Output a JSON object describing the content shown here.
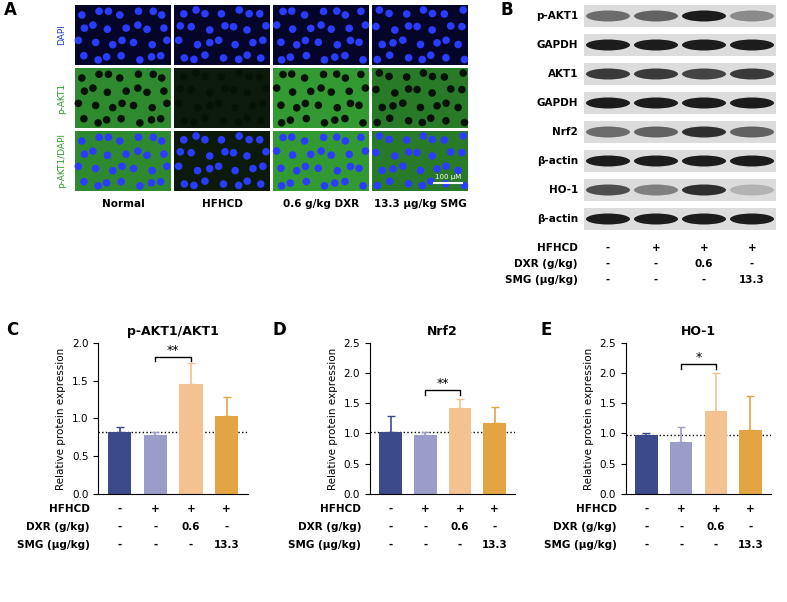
{
  "panel_letters": [
    "A",
    "B",
    "C",
    "D",
    "E"
  ],
  "panel_a": {
    "rows": [
      "DAPI",
      "p-AKT1",
      "p-AKT1/DAPI"
    ],
    "columns": [
      "Normal",
      "HFHCD",
      "0.6 g/kg DXR",
      "13.3 μg/kg SMG"
    ],
    "scale_bar": "100 μM"
  },
  "panel_b": {
    "blots": [
      "p-AKT1",
      "GAPDH",
      "AKT1",
      "GAPDH",
      "Nrf2",
      "β-actin",
      "HO-1",
      "β-actin"
    ],
    "treatments": [
      {
        "label": "HFHCD",
        "values": [
          "-",
          "+",
          "+",
          "+"
        ]
      },
      {
        "label": "DXR (g/kg)",
        "values": [
          "-",
          "-",
          "0.6",
          "-"
        ]
      },
      {
        "label": "SMG (μg/kg)",
        "values": [
          "-",
          "-",
          "-",
          "13.3"
        ]
      }
    ]
  },
  "chart_data": [
    {
      "type": "bar",
      "title": "p-AKT1/AKT1",
      "y_label": "Relative protein expression",
      "categories": [
        null,
        null,
        null,
        null
      ],
      "values": [
        0.82,
        0.78,
        1.46,
        1.03
      ],
      "errors": [
        0.07,
        0.04,
        0.27,
        0.26
      ],
      "colors": [
        "#3c4a8c",
        "#9c9cc9",
        "#f3c290",
        "#e3a443"
      ],
      "ylim": [
        0,
        2.0
      ],
      "yticks": [
        {
          "value": 0,
          "label": "0.0"
        },
        0.5,
        {
          "value": 1,
          "label": "1.0"
        },
        1.5,
        {
          "value": 2,
          "label": "2.0"
        }
      ],
      "tick_labels": "y",
      "reference_line": 0.82,
      "significance": {
        "from": 1,
        "to": 2,
        "y": 1.82,
        "label": "**"
      },
      "treatments": [
        {
          "label": "HFHCD",
          "values": [
            "-",
            "+",
            "+",
            "+"
          ]
        },
        {
          "label": "DXR (g/kg)",
          "values": [
            "-",
            "-",
            "0.6",
            "-"
          ]
        },
        {
          "label": "SMG (μg/kg)",
          "values": [
            "-",
            "-",
            "-",
            "13.3"
          ]
        }
      ]
    },
    {
      "type": "bar",
      "title": "Nrf2",
      "y_label": "Relative protein expression",
      "categories": [
        null,
        null,
        null,
        null
      ],
      "values": [
        1.02,
        0.97,
        1.42,
        1.17
      ],
      "errors": [
        0.27,
        0.05,
        0.15,
        0.27
      ],
      "colors": [
        "#3c4a8c",
        "#9c9cc9",
        "#f3c290",
        "#e3a443"
      ],
      "ylim": [
        0,
        2.5
      ],
      "yticks": [
        {
          "value": 0,
          "label": "0.0"
        },
        0.5,
        {
          "value": 1,
          "label": "1.0"
        },
        1.5,
        {
          "value": 2,
          "label": "2.0"
        },
        2.5
      ],
      "tick_labels": "y",
      "reference_line": 1.02,
      "significance": {
        "from": 1,
        "to": 2,
        "y": 1.72,
        "label": "**"
      },
      "treatments": [
        {
          "label": "HFHCD",
          "values": [
            "-",
            "+",
            "+",
            "+"
          ]
        },
        {
          "label": "DXR (g/kg)",
          "values": [
            "-",
            "-",
            "0.6",
            "-"
          ]
        },
        {
          "label": "SMG (μg/kg)",
          "values": [
            "-",
            "-",
            "-",
            "13.3"
          ]
        }
      ]
    },
    {
      "type": "bar",
      "title": "HO-1",
      "y_label": "Relative protein expression",
      "categories": [
        null,
        null,
        null,
        null
      ],
      "values": [
        0.97,
        0.85,
        1.38,
        1.05
      ],
      "errors": [
        0.04,
        0.26,
        0.62,
        0.58
      ],
      "colors": [
        "#3c4a8c",
        "#9c9cc9",
        "#f3c290",
        "#e3a443"
      ],
      "ylim": [
        0,
        2.5
      ],
      "yticks": [
        {
          "value": 0,
          "label": "0.0"
        },
        0.5,
        {
          "value": 1,
          "label": "1.0"
        },
        1.5,
        {
          "value": 2,
          "label": "2.0"
        },
        2.5
      ],
      "tick_labels": "y",
      "reference_line": 0.97,
      "significance": {
        "from": 1,
        "to": 2,
        "y": 2.15,
        "label": "*"
      },
      "treatments": [
        {
          "label": "HFHCD",
          "values": [
            "-",
            "+",
            "+",
            "+"
          ]
        },
        {
          "label": "DXR (g/kg)",
          "values": [
            "-",
            "-",
            "0.6",
            "-"
          ]
        },
        {
          "label": "SMG (μg/kg)",
          "values": [
            "-",
            "-",
            "-",
            "13.3"
          ]
        }
      ]
    }
  ]
}
